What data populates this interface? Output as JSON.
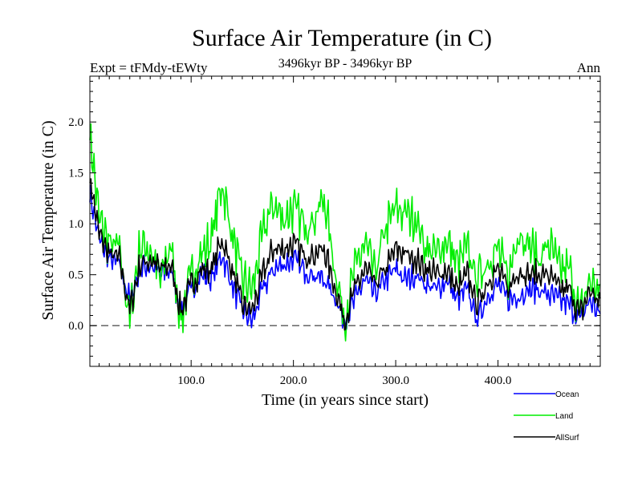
{
  "chart_data": {
    "type": "line",
    "title": "Surface Air Temperature (in C)",
    "subtitle": "3496kyr BP - 3496kyr BP",
    "experiment_label": "Expt = tFMdy-tEWty",
    "period_label": "Ann",
    "xlabel": "Time (in years since start)",
    "ylabel": "Surface Air Temperature (in C)",
    "xlim": [
      1,
      500
    ],
    "ylim": [
      -0.4,
      2.45
    ],
    "xticks": [
      100,
      200,
      300,
      400
    ],
    "xtick_labels": [
      "100.0",
      "200.0",
      "300.0",
      "400.0"
    ],
    "yticks": [
      0.0,
      0.5,
      1.0,
      1.5,
      2.0
    ],
    "ytick_labels": [
      "0.0",
      "0.5",
      "1.0",
      "1.5",
      "2.0"
    ],
    "zero_line": 0.0,
    "legend_position": "bottom-right, below plot",
    "x": [
      1,
      10,
      20,
      30,
      40,
      50,
      60,
      70,
      80,
      90,
      100,
      110,
      120,
      130,
      140,
      150,
      160,
      170,
      180,
      190,
      200,
      210,
      220,
      230,
      240,
      250,
      260,
      270,
      280,
      290,
      300,
      310,
      320,
      330,
      340,
      350,
      360,
      370,
      380,
      390,
      400,
      410,
      420,
      430,
      440,
      450,
      460,
      470,
      480,
      490,
      500
    ],
    "series": [
      {
        "name": "Ocean",
        "color": "#0000ff",
        "values": [
          1.3,
          0.85,
          0.65,
          0.6,
          0.25,
          0.55,
          0.6,
          0.5,
          0.55,
          0.15,
          0.35,
          0.5,
          0.45,
          0.7,
          0.4,
          0.15,
          0.05,
          0.35,
          0.55,
          0.6,
          0.65,
          0.55,
          0.5,
          0.45,
          0.3,
          0.05,
          0.25,
          0.45,
          0.3,
          0.45,
          0.55,
          0.45,
          0.5,
          0.4,
          0.35,
          0.45,
          0.25,
          0.35,
          0.05,
          0.3,
          0.4,
          0.25,
          0.3,
          0.35,
          0.35,
          0.3,
          0.25,
          0.2,
          0.05,
          0.25,
          0.1
        ]
      },
      {
        "name": "Land",
        "color": "#00ee00",
        "values": [
          1.9,
          1.05,
          0.8,
          0.75,
          0.05,
          0.8,
          0.75,
          0.45,
          0.8,
          0.05,
          0.5,
          0.7,
          0.85,
          1.4,
          0.9,
          0.45,
          0.35,
          0.9,
          1.2,
          1.05,
          1.15,
          1.0,
          1.05,
          1.25,
          0.6,
          0.05,
          0.55,
          0.8,
          0.5,
          0.95,
          1.15,
          1.1,
          1.05,
          0.75,
          0.7,
          0.85,
          0.6,
          0.75,
          0.45,
          0.65,
          0.75,
          0.45,
          0.95,
          0.8,
          0.65,
          0.8,
          0.55,
          0.55,
          0.1,
          0.45,
          0.3
        ]
      },
      {
        "name": "AllSurf",
        "color": "#000000",
        "values": [
          1.45,
          0.9,
          0.7,
          0.65,
          0.15,
          0.6,
          0.65,
          0.55,
          0.6,
          0.15,
          0.4,
          0.55,
          0.55,
          0.85,
          0.55,
          0.2,
          0.15,
          0.5,
          0.75,
          0.75,
          0.8,
          0.7,
          0.7,
          0.75,
          0.4,
          0.05,
          0.35,
          0.55,
          0.4,
          0.55,
          0.75,
          0.7,
          0.65,
          0.55,
          0.5,
          0.55,
          0.35,
          0.5,
          0.2,
          0.45,
          0.55,
          0.35,
          0.55,
          0.5,
          0.5,
          0.5,
          0.35,
          0.35,
          0.1,
          0.35,
          0.2
        ]
      }
    ]
  }
}
